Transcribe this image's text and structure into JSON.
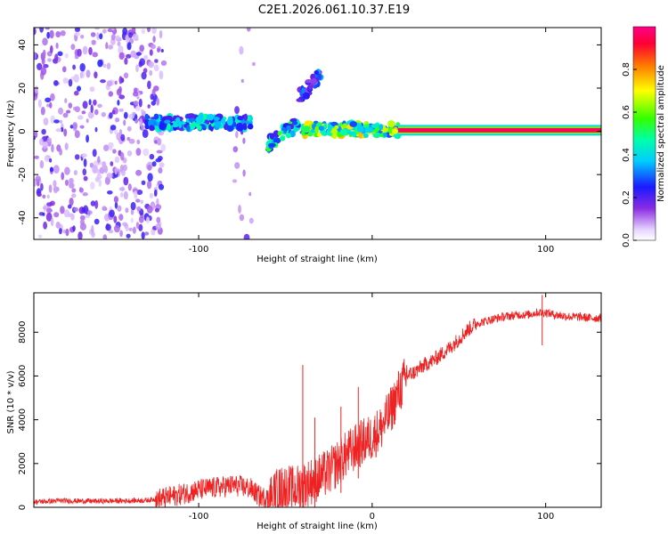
{
  "title": "C2E1.2026.061.10.37.E19",
  "chart_data": [
    {
      "type": "heatmap",
      "name": "spectrogram",
      "xlabel": "Height of straight line (km)",
      "ylabel": "Frequency (Hz)",
      "xlim": [
        -195,
        132
      ],
      "ylim": [
        -50,
        48
      ],
      "xticks": [
        -100,
        0,
        100
      ],
      "xtick_labels": [
        "-100",
        "",
        "100"
      ],
      "yticks": [
        -40,
        -20,
        0,
        20,
        40
      ],
      "ytick_labels": [
        "-40",
        "-20",
        "0",
        "20",
        "40"
      ],
      "colorbar": {
        "label": "Normalized spectral amplitude",
        "range": [
          0,
          1
        ],
        "ticks": [
          0.0,
          0.2,
          0.4,
          0.6,
          0.8
        ],
        "tick_labels": [
          "0.0",
          "0.2",
          "0.4",
          "0.6",
          "0.8"
        ]
      },
      "features": [
        {
          "description": "diffuse scattered power",
          "x_range": [
            -195,
            -120
          ],
          "y_range": [
            -50,
            48
          ],
          "amplitude": 0.1
        },
        {
          "description": "noise column",
          "x_range": [
            -80,
            -68
          ],
          "y_range": [
            -50,
            48
          ],
          "amplitude": 0.03
        },
        {
          "description": "scattered echo band",
          "x_range": [
            -130,
            -70
          ],
          "y_center": 4,
          "amplitude": 0.35
        },
        {
          "description": "drifting echo",
          "x_range": [
            -60,
            -42
          ],
          "y_center": -2,
          "amplitude": 0.4
        },
        {
          "description": "upper echo",
          "x_range": [
            -42,
            -30
          ],
          "y_center": 20,
          "amplitude": 0.25
        },
        {
          "description": "echo band",
          "x_range": [
            -40,
            15
          ],
          "y_center": 1,
          "amplitude": 0.55
        },
        {
          "description": "strong line",
          "x_range": [
            15,
            132
          ],
          "y_center": 0.5,
          "amplitude": 0.95
        }
      ]
    },
    {
      "type": "line",
      "name": "snr",
      "xlabel": "Height of straight line (km)",
      "ylabel": "SNR (10 * v/v)",
      "xlim": [
        -195,
        132
      ],
      "ylim": [
        0,
        9800
      ],
      "xticks": [
        -100,
        0,
        100
      ],
      "xtick_labels": [
        "-100",
        "0",
        "100"
      ],
      "yticks": [
        0,
        2000,
        4000,
        6000,
        8000
      ],
      "ytick_labels": [
        "0",
        "2000",
        "4000",
        "6000",
        "8000"
      ],
      "color": "#ee2222",
      "series": [
        {
          "name": "SNR",
          "x": [
            -195,
            -180,
            -160,
            -140,
            -130,
            -120,
            -110,
            -100,
            -90,
            -80,
            -75,
            -70,
            -65,
            -60,
            -55,
            -50,
            -45,
            -40,
            -35,
            -30,
            -25,
            -20,
            -15,
            -10,
            -5,
            0,
            5,
            10,
            15,
            20,
            25,
            30,
            35,
            40,
            45,
            50,
            55,
            60,
            65,
            70,
            75,
            80,
            85,
            90,
            95,
            100,
            105,
            110,
            115,
            120,
            125,
            132
          ],
          "values": [
            250,
            300,
            280,
            300,
            320,
            420,
            600,
            800,
            900,
            1000,
            950,
            850,
            500,
            400,
            700,
            900,
            800,
            1000,
            1200,
            1400,
            1600,
            2000,
            2400,
            2700,
            3000,
            3200,
            3600,
            4300,
            5200,
            6000,
            6200,
            6500,
            6700,
            7000,
            7300,
            7700,
            8100,
            8400,
            8500,
            8600,
            8700,
            8750,
            8800,
            8800,
            8900,
            8900,
            8800,
            8750,
            8700,
            8700,
            8650,
            8650
          ]
        }
      ],
      "spikes": [
        {
          "x": -40,
          "value": 6500
        },
        {
          "x": -33,
          "value": 4100
        },
        {
          "x": -18,
          "value": 4600
        },
        {
          "x": -8,
          "value": 5500
        },
        {
          "x": 98,
          "value": 9700
        }
      ]
    }
  ]
}
